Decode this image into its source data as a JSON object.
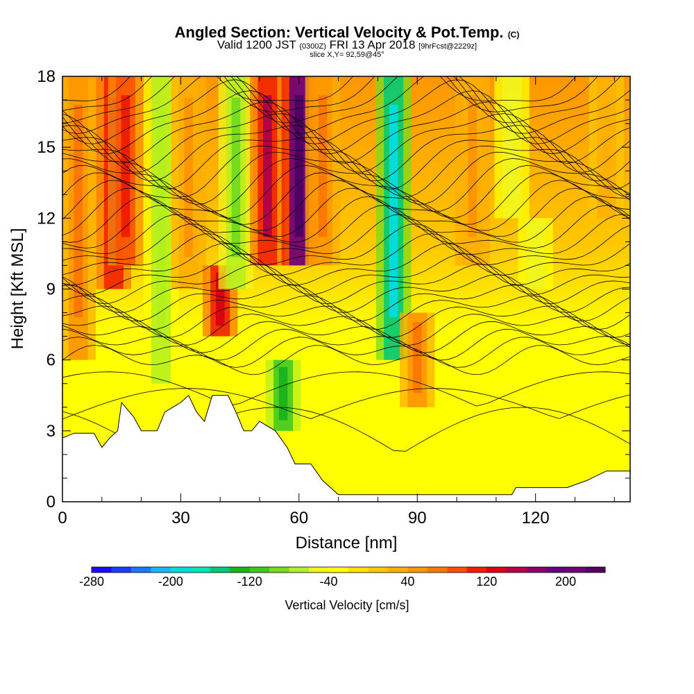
{
  "title": {
    "line1": "Angled Section: Vertical Velocity & Pot.Temp.",
    "line1_suffix": "(C)",
    "line2_a": "Valid 1200 JST",
    "line2_b": "(0300Z)",
    "line2_c": "FRI 13 Apr 2018",
    "line2_d": "[9hrFcst@2229z]",
    "line3": "slice X,Y= 92,59@45°"
  },
  "chart_data": {
    "type": "heatmap",
    "xlabel": "Distance [nm]",
    "ylabel": "Height [Kft MSL]",
    "xlim": [
      0,
      144
    ],
    "ylim": [
      0,
      18
    ],
    "x_ticks": [
      0,
      30,
      60,
      90,
      120
    ],
    "y_ticks": [
      0,
      3,
      6,
      9,
      12,
      15,
      18
    ],
    "fill_variable": "Vertical Velocity",
    "contour_variable": "Pot.Temp. (C)",
    "colorbar": {
      "title": "Vertical Velocity [cm/s]",
      "min": -280,
      "max": 240,
      "step": 20,
      "tick_values": [
        -280,
        -200,
        -120,
        -40,
        40,
        120,
        200
      ],
      "colors": [
        "#1e0cff",
        "#1e3cff",
        "#1e78ff",
        "#1eb4ff",
        "#00dcdc",
        "#00e6b4",
        "#00c878",
        "#1eb41e",
        "#3cc81e",
        "#78dc1e",
        "#b4f01e",
        "#f0f51e",
        "#ffff00",
        "#ffe100",
        "#ffc800",
        "#ffaf00",
        "#ff9600",
        "#ff7800",
        "#ff5000",
        "#f01e00",
        "#dc0014",
        "#b40046",
        "#8c0064",
        "#640082",
        "#6e0078",
        "#500064"
      ]
    },
    "vertical_velocity_bands": [
      {
        "x": 4,
        "ymin": 6,
        "ymax": 18,
        "w": 60
      },
      {
        "x": 13,
        "ymin": 9,
        "ymax": 18,
        "w": 140
      },
      {
        "x": 16,
        "ymin": 10,
        "ymax": 18,
        "w": 110
      },
      {
        "x": 25,
        "ymin": 5,
        "ymax": 18,
        "w": -80
      },
      {
        "x": 32,
        "ymin": 9,
        "ymax": 18,
        "w": 40
      },
      {
        "x": 40,
        "ymin": 7,
        "ymax": 10,
        "w": 130
      },
      {
        "x": 44,
        "ymin": 9,
        "ymax": 18,
        "w": -90
      },
      {
        "x": 52,
        "ymin": 10,
        "ymax": 18,
        "w": 140
      },
      {
        "x": 56,
        "ymin": 3,
        "ymax": 6,
        "w": -140
      },
      {
        "x": 60,
        "ymin": 10,
        "ymax": 18,
        "w": 230
      },
      {
        "x": 66,
        "ymin": 10,
        "ymax": 18,
        "w": 60
      },
      {
        "x": 84,
        "ymin": 6,
        "ymax": 18,
        "w": -200
      },
      {
        "x": 90,
        "ymin": 4,
        "ymax": 8,
        "w": 60
      },
      {
        "x": 104,
        "ymin": 10,
        "ymax": 18,
        "w": 40
      },
      {
        "x": 114,
        "ymin": 12,
        "ymax": 18,
        "w": -60
      },
      {
        "x": 120,
        "ymin": 9,
        "ymax": 12,
        "w": -60
      },
      {
        "x": 138,
        "ymin": 12,
        "ymax": 18,
        "w": 30
      }
    ],
    "terrain_height_kft": [
      [
        0,
        2.7
      ],
      [
        3,
        2.9
      ],
      [
        8,
        2.9
      ],
      [
        10,
        2.3
      ],
      [
        12,
        2.7
      ],
      [
        14,
        3.0
      ],
      [
        15,
        4.2
      ],
      [
        18,
        3.6
      ],
      [
        20,
        3.0
      ],
      [
        24,
        3.0
      ],
      [
        26,
        3.8
      ],
      [
        30,
        4.2
      ],
      [
        32,
        4.5
      ],
      [
        34,
        3.8
      ],
      [
        36,
        3.4
      ],
      [
        38,
        4.5
      ],
      [
        42,
        4.5
      ],
      [
        44,
        3.8
      ],
      [
        46,
        3.0
      ],
      [
        48,
        3.0
      ],
      [
        50,
        3.4
      ],
      [
        54,
        3.0
      ],
      [
        57,
        2.3
      ],
      [
        59,
        1.6
      ],
      [
        63,
        1.6
      ],
      [
        66,
        0.9
      ],
      [
        70,
        0.3
      ],
      [
        114,
        0.3
      ],
      [
        115,
        0.6
      ],
      [
        128,
        0.6
      ],
      [
        133,
        0.9
      ],
      [
        138,
        1.3
      ],
      [
        144,
        1.3
      ]
    ]
  }
}
